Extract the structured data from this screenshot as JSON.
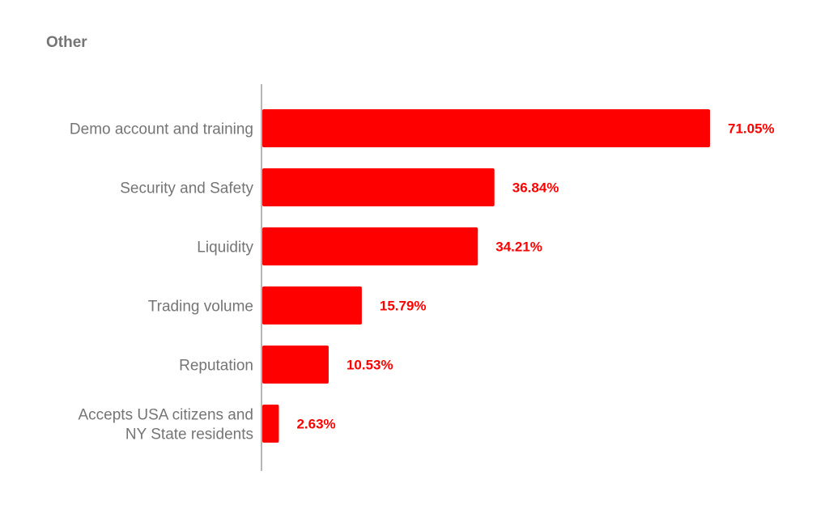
{
  "chart_data": {
    "type": "bar",
    "orientation": "horizontal",
    "title": "Other",
    "categories": [
      [
        "Demo account and training"
      ],
      [
        "Security and Safety"
      ],
      [
        "Liquidity"
      ],
      [
        "Trading volume"
      ],
      [
        "Reputation"
      ],
      [
        "Accepts USA citizens and",
        "NY State residents"
      ]
    ],
    "values": [
      71.05,
      36.84,
      34.21,
      15.79,
      10.53,
      2.63
    ],
    "value_labels": [
      "71.05%",
      "36.84%",
      "34.21%",
      "15.79%",
      "10.53%",
      "2.63%"
    ],
    "xlim": [
      0,
      75
    ],
    "grid": false,
    "legend": "none",
    "colors": {
      "bar": "#ff0000",
      "value_label": "#ff0000",
      "axis": "#9e9e9e",
      "category_label": "#757575",
      "title": "#757575"
    }
  }
}
